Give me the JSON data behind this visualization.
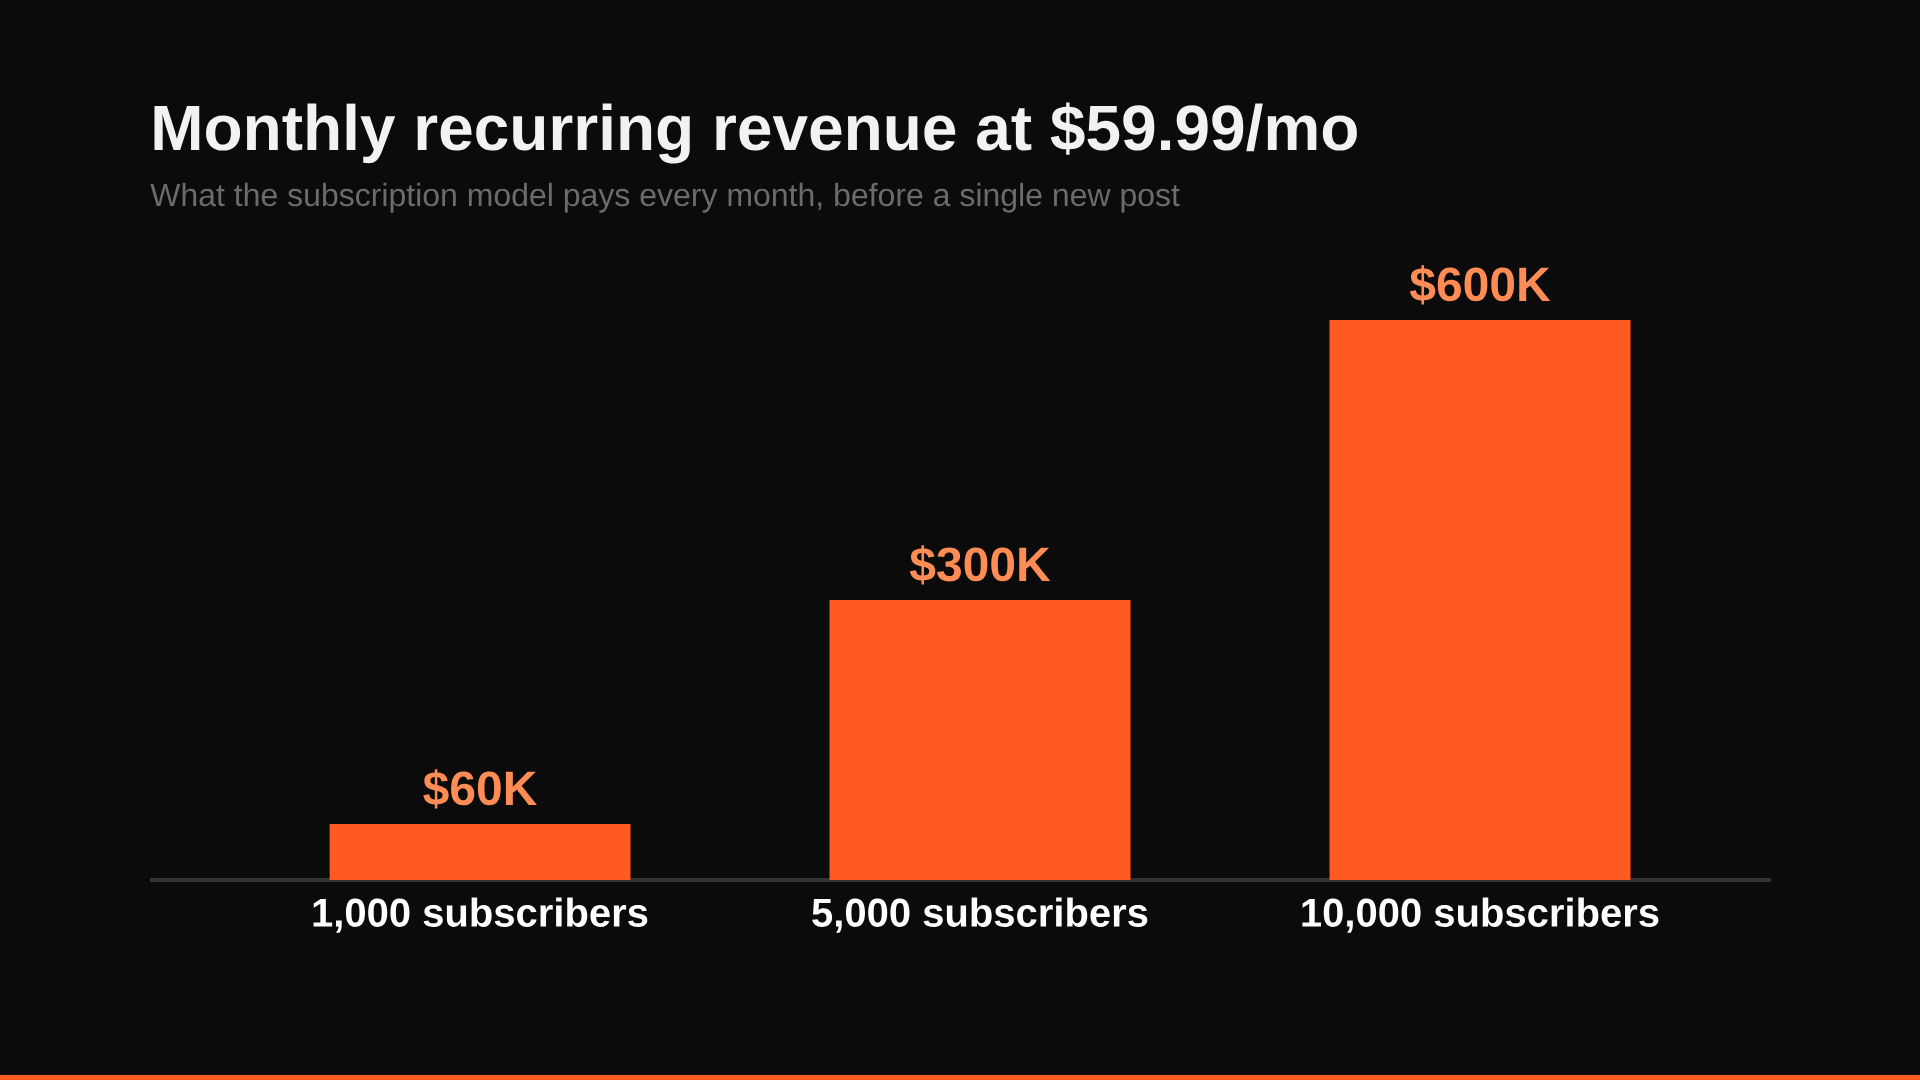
{
  "chart_data": {
    "type": "bar",
    "title": "Monthly recurring revenue at $59.99/mo",
    "subtitle": "What the subscription model pays every month, before a single new post",
    "categories": [
      "1,000 subscribers",
      "5,000 subscribers",
      "10,000 subscribers"
    ],
    "values": [
      60000,
      300000,
      600000
    ],
    "value_labels": [
      "$60K",
      "$300K",
      "$600K"
    ],
    "color": "#ff5a1f"
  }
}
